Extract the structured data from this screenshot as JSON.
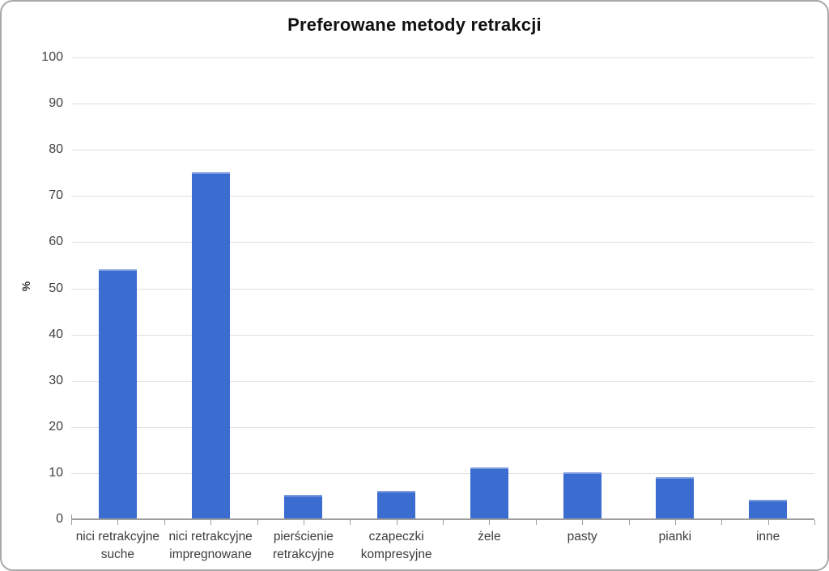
{
  "chart_data": {
    "type": "bar",
    "title": "Preferowane metody retrakcji",
    "xlabel": "",
    "ylabel": "%",
    "categories": [
      "nici retrakcyjne suche",
      "nici retrakcyjne impregnowane",
      "pierścienie retrakcyjne",
      "czapeczki kompresyjne",
      "żele",
      "pasty",
      "pianki",
      "inne"
    ],
    "values": [
      54,
      75,
      5,
      6,
      11,
      10,
      9,
      4
    ],
    "ylim": [
      0,
      100
    ],
    "yticks": [
      0,
      10,
      20,
      30,
      40,
      50,
      60,
      70,
      80,
      90,
      100
    ],
    "grid": true,
    "legend": "none",
    "bar_color": "#3b6cd0",
    "bar_top_edge_color": "#7b9ade",
    "gridline_color": "#e0e0e0",
    "axis_color": "#9e9e9e"
  }
}
